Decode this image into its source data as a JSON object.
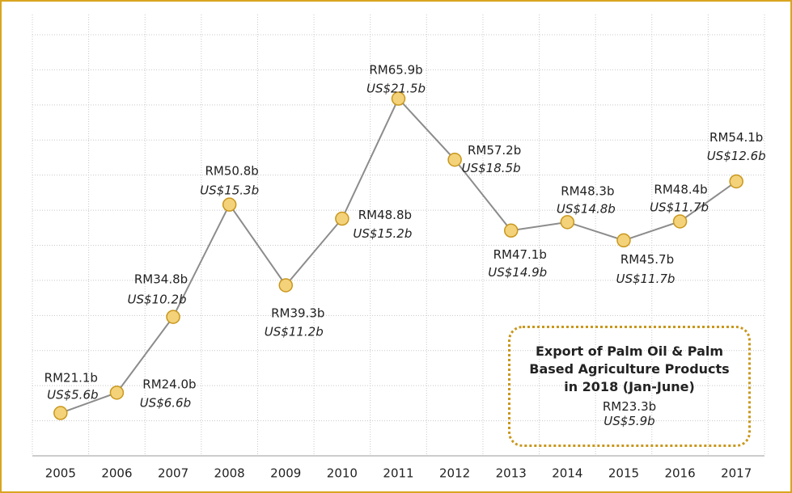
{
  "chart_data": {
    "type": "line",
    "categories": [
      "2005",
      "2006",
      "2007",
      "2008",
      "2009",
      "2010",
      "2011",
      "2012",
      "2013",
      "2014",
      "2015",
      "2016",
      "2017"
    ],
    "series": [
      {
        "name": "Export",
        "color": "#8c8c8c",
        "values": [
          21.1,
          24.0,
          34.8,
          50.8,
          39.3,
          48.8,
          65.9,
          57.2,
          47.1,
          48.3,
          45.7,
          48.4,
          54.1
        ],
        "value_labels": [
          "RM21.1b",
          "RM24.0b",
          "RM34.8b",
          "RM50.8b",
          "RM39.3b",
          "RM48.8b",
          "RM65.9b",
          "RM57.2b",
          "RM47.1b",
          "RM48.3b",
          "RM45.7b",
          "RM48.4b",
          "RM54.1b"
        ],
        "usd_labels": [
          "US$5.6b",
          "US$6.6b",
          "US$10.2b",
          "US$15.3b",
          "US$11.2b",
          "US$15.2b",
          "US$21.5b",
          "US$18.5b",
          "US$14.9b",
          "US$14.8b",
          "US$11.7b",
          "US$11.7b",
          "US$12.6b"
        ]
      }
    ],
    "marker_color": "#f3d27a",
    "ylim": [
      15,
      75
    ],
    "yticks": [
      15,
      20,
      25,
      30,
      35,
      40,
      45,
      50,
      55,
      60,
      65,
      70,
      75
    ],
    "grid": true,
    "annotation": {
      "title": "Export of Palm Oil & Palm Based Agriculture Products in 2018 (Jan-June)",
      "line1": "RM23.3b",
      "line2": "US$5.9b"
    }
  }
}
